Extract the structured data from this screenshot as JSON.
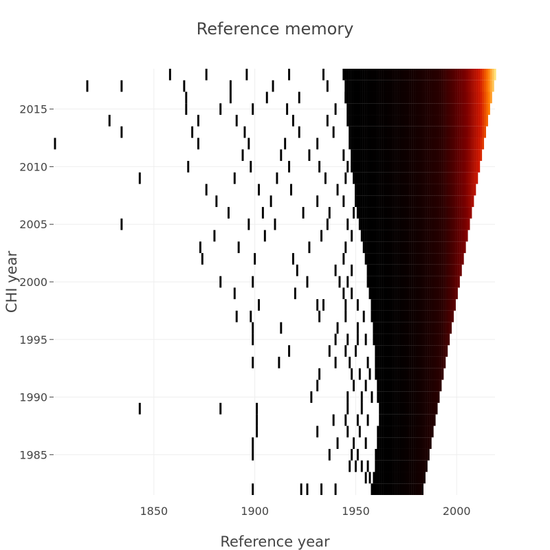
{
  "chart_data": {
    "type": "heatmap",
    "title": "Reference memory",
    "xlabel": "Reference year",
    "ylabel": "CHI year",
    "x_ticks": [
      1850,
      1900,
      1950,
      2000
    ],
    "y_ticks": [
      1985,
      1990,
      1995,
      2000,
      2005,
      2010,
      2015
    ],
    "xlim": [
      1801,
      2019
    ],
    "ylim": [
      1981.5,
      2018.5
    ],
    "grid": true,
    "colorscale": [
      {
        "value": 0.0,
        "color": "#000000"
      },
      {
        "value": 0.35,
        "color": "#2a0000"
      },
      {
        "value": 0.6,
        "color": "#7a0000"
      },
      {
        "value": 0.78,
        "color": "#d01800"
      },
      {
        "value": 0.9,
        "color": "#ff7a00"
      },
      {
        "value": 1.0,
        "color": "#ffe27a"
      }
    ],
    "density_profile": [
      {
        "year": 1982,
        "start": 1958,
        "end": 1983,
        "peak": 0.18
      },
      {
        "year": 1983,
        "start": 1959,
        "end": 1984,
        "peak": 0.2
      },
      {
        "year": 1984,
        "start": 1960,
        "end": 1985,
        "peak": 0.22
      },
      {
        "year": 1985,
        "start": 1960,
        "end": 1986,
        "peak": 0.24
      },
      {
        "year": 1986,
        "start": 1961,
        "end": 1987,
        "peak": 0.26
      },
      {
        "year": 1987,
        "start": 1961,
        "end": 1988,
        "peak": 0.28
      },
      {
        "year": 1988,
        "start": 1962,
        "end": 1989,
        "peak": 0.3
      },
      {
        "year": 1989,
        "start": 1962,
        "end": 1990,
        "peak": 0.32
      },
      {
        "year": 1990,
        "start": 1961,
        "end": 1991,
        "peak": 0.34
      },
      {
        "year": 1991,
        "start": 1961,
        "end": 1992,
        "peak": 0.36
      },
      {
        "year": 1992,
        "start": 1960,
        "end": 1993,
        "peak": 0.38
      },
      {
        "year": 1993,
        "start": 1960,
        "end": 1994,
        "peak": 0.4
      },
      {
        "year": 1994,
        "start": 1960,
        "end": 1995,
        "peak": 0.42
      },
      {
        "year": 1995,
        "start": 1959,
        "end": 1996,
        "peak": 0.44
      },
      {
        "year": 1996,
        "start": 1959,
        "end": 1997,
        "peak": 0.46
      },
      {
        "year": 1997,
        "start": 1958,
        "end": 1998,
        "peak": 0.48
      },
      {
        "year": 1998,
        "start": 1958,
        "end": 1999,
        "peak": 0.5
      },
      {
        "year": 1999,
        "start": 1957,
        "end": 2000,
        "peak": 0.52
      },
      {
        "year": 2000,
        "start": 1956,
        "end": 2001,
        "peak": 0.54
      },
      {
        "year": 2001,
        "start": 1956,
        "end": 2002,
        "peak": 0.56
      },
      {
        "year": 2002,
        "start": 1955,
        "end": 2003,
        "peak": 0.58
      },
      {
        "year": 2003,
        "start": 1954,
        "end": 2004,
        "peak": 0.6
      },
      {
        "year": 2004,
        "start": 1953,
        "end": 2005,
        "peak": 0.62
      },
      {
        "year": 2005,
        "start": 1952,
        "end": 2006,
        "peak": 0.64
      },
      {
        "year": 2006,
        "start": 1951,
        "end": 2007,
        "peak": 0.66
      },
      {
        "year": 2007,
        "start": 1950,
        "end": 2008,
        "peak": 0.7
      },
      {
        "year": 2008,
        "start": 1950,
        "end": 2009,
        "peak": 0.73
      },
      {
        "year": 2009,
        "start": 1949,
        "end": 2010,
        "peak": 0.76
      },
      {
        "year": 2010,
        "start": 1948,
        "end": 2011,
        "peak": 0.78
      },
      {
        "year": 2011,
        "start": 1948,
        "end": 2012,
        "peak": 0.8
      },
      {
        "year": 2012,
        "start": 1947,
        "end": 2013,
        "peak": 0.82
      },
      {
        "year": 2013,
        "start": 1947,
        "end": 2014,
        "peak": 0.84
      },
      {
        "year": 2014,
        "start": 1946,
        "end": 2015,
        "peak": 0.87
      },
      {
        "year": 2015,
        "start": 1946,
        "end": 2016,
        "peak": 0.9
      },
      {
        "year": 2016,
        "start": 1945,
        "end": 2017,
        "peak": 0.93
      },
      {
        "year": 2017,
        "start": 1945,
        "end": 2018,
        "peak": 0.97
      },
      {
        "year": 2018,
        "start": 1944,
        "end": 2019,
        "peak": 1.0
      }
    ],
    "scatter_cells": [
      {
        "year": 1982,
        "x": [
          1899,
          1923,
          1926,
          1933,
          1940
        ]
      },
      {
        "year": 1983,
        "x": [
          1955,
          1957
        ]
      },
      {
        "year": 1984,
        "x": [
          1947,
          1950,
          1953,
          1956
        ]
      },
      {
        "year": 1985,
        "x": [
          1899,
          1937,
          1948,
          1951
        ]
      },
      {
        "year": 1986,
        "x": [
          1899,
          1941,
          1949,
          1955
        ]
      },
      {
        "year": 1987,
        "x": [
          1901,
          1931,
          1946,
          1952
        ]
      },
      {
        "year": 1988,
        "x": [
          1901,
          1939,
          1945,
          1951,
          1956
        ]
      },
      {
        "year": 1989,
        "x": [
          1843,
          1883,
          1901,
          1946,
          1953
        ]
      },
      {
        "year": 1990,
        "x": [
          1928,
          1946,
          1953,
          1958
        ]
      },
      {
        "year": 1991,
        "x": [
          1931,
          1949,
          1955
        ]
      },
      {
        "year": 1992,
        "x": [
          1932,
          1948,
          1952,
          1957
        ]
      },
      {
        "year": 1993,
        "x": [
          1899,
          1912,
          1940,
          1947,
          1956
        ]
      },
      {
        "year": 1994,
        "x": [
          1917,
          1937,
          1945,
          1950
        ]
      },
      {
        "year": 1995,
        "x": [
          1899,
          1940,
          1946,
          1951,
          1955
        ]
      },
      {
        "year": 1996,
        "x": [
          1899,
          1913,
          1941,
          1951
        ]
      },
      {
        "year": 1997,
        "x": [
          1891,
          1898,
          1932,
          1945,
          1954
        ]
      },
      {
        "year": 1998,
        "x": [
          1902,
          1931,
          1934,
          1945,
          1951
        ]
      },
      {
        "year": 1999,
        "x": [
          1890,
          1920,
          1944,
          1948
        ]
      },
      {
        "year": 2000,
        "x": [
          1883,
          1899,
          1926,
          1942,
          1946
        ]
      },
      {
        "year": 2001,
        "x": [
          1921,
          1940,
          1948
        ]
      },
      {
        "year": 2002,
        "x": [
          1874,
          1900,
          1919,
          1944
        ]
      },
      {
        "year": 2003,
        "x": [
          1873,
          1892,
          1927,
          1945
        ]
      },
      {
        "year": 2004,
        "x": [
          1880,
          1905,
          1933,
          1948
        ]
      },
      {
        "year": 2005,
        "x": [
          1834,
          1897,
          1910,
          1936,
          1946
        ]
      },
      {
        "year": 2006,
        "x": [
          1887,
          1904,
          1924,
          1937,
          1949
        ]
      },
      {
        "year": 2007,
        "x": [
          1881,
          1908,
          1931,
          1944
        ]
      },
      {
        "year": 2008,
        "x": [
          1876,
          1902,
          1918,
          1941
        ]
      },
      {
        "year": 2009,
        "x": [
          1843,
          1890,
          1911,
          1935,
          1945
        ]
      },
      {
        "year": 2010,
        "x": [
          1867,
          1898,
          1917,
          1932,
          1946
        ]
      },
      {
        "year": 2011,
        "x": [
          1894,
          1913,
          1927,
          1944
        ]
      },
      {
        "year": 2012,
        "x": [
          1801,
          1872,
          1897,
          1915,
          1931
        ]
      },
      {
        "year": 2013,
        "x": [
          1834,
          1869,
          1895,
          1922,
          1939
        ]
      },
      {
        "year": 2014,
        "x": [
          1828,
          1872,
          1891,
          1919,
          1936
        ]
      },
      {
        "year": 2015,
        "x": [
          1866,
          1883,
          1899,
          1916,
          1940
        ]
      },
      {
        "year": 2016,
        "x": [
          1866,
          1888,
          1906,
          1922,
          1945
        ]
      },
      {
        "year": 2017,
        "x": [
          1817,
          1834,
          1865,
          1888,
          1909,
          1936
        ]
      },
      {
        "year": 2018,
        "x": [
          1858,
          1876,
          1896,
          1917,
          1934,
          1946
        ]
      }
    ]
  }
}
